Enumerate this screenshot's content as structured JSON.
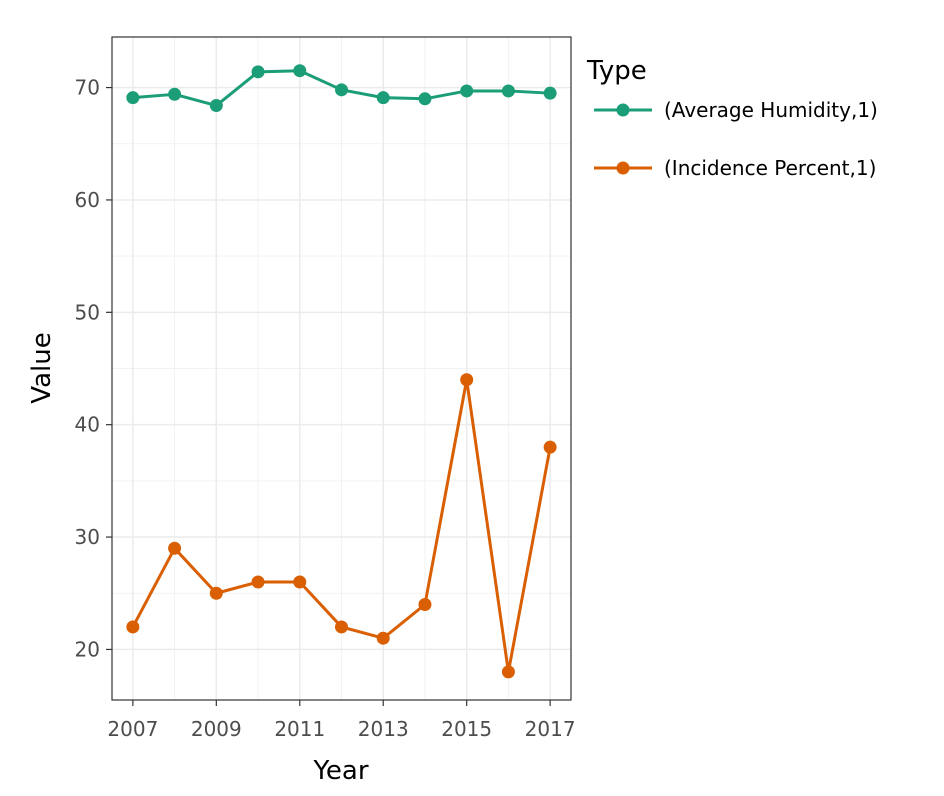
{
  "chart_data": {
    "type": "line",
    "xlabel": "Year",
    "ylabel": "Value",
    "xlim": [
      2006.5,
      2017.5
    ],
    "ylim": [
      15.5,
      74.5
    ],
    "x_ticks": [
      2007,
      2009,
      2011,
      2013,
      2015,
      2017
    ],
    "y_ticks": [
      20,
      30,
      40,
      50,
      60,
      70
    ],
    "x": [
      2007,
      2008,
      2009,
      2010,
      2011,
      2012,
      2013,
      2014,
      2015,
      2016,
      2017
    ],
    "grid": true,
    "legend": {
      "title": "Type",
      "placement": "right"
    },
    "series": [
      {
        "name": "(Average Humidity,1)",
        "color": "#1b9e77",
        "values": [
          69.1,
          69.4,
          68.4,
          71.4,
          71.5,
          69.8,
          69.1,
          69.0,
          69.7,
          69.7,
          69.5
        ]
      },
      {
        "name": "(Incidence Percent,1)",
        "color": "#d95f02",
        "values": [
          22,
          29,
          25,
          26,
          26,
          22,
          21,
          24,
          44,
          18,
          38
        ]
      }
    ]
  }
}
